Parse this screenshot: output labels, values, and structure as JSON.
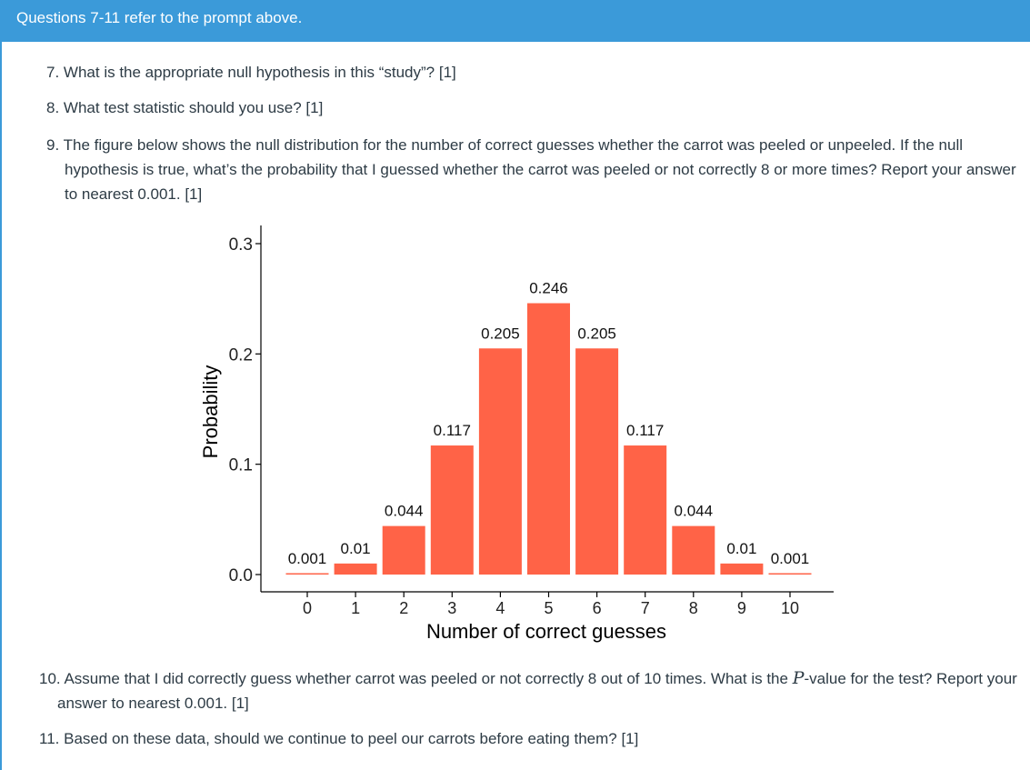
{
  "header": {
    "title": "Questions 7-11 refer to the prompt above."
  },
  "questions": {
    "q7": {
      "num": "7.",
      "text": "What is the appropriate null hypothesis in this “study”? [1]"
    },
    "q8": {
      "num": "8.",
      "text": "What test statistic should you use? [1]"
    },
    "q9": {
      "num": "9.",
      "text": "The figure below shows the null distribution for the number of correct guesses whether the carrot was peeled or unpeeled. If the null hypothesis is true, what’s the probability that I guessed whether the carrot was peeled or not correctly 8 or more times? Report your answer to nearest 0.001. [1]"
    },
    "q10": {
      "num": "10.",
      "text_before": "Assume that I did correctly guess whether carrot was peeled or not correctly 8 out of 10 times. What is the ",
      "var": "P",
      "text_after": "-value for the test? Report your answer to nearest 0.001. [1]"
    },
    "q11": {
      "num": "11.",
      "text": "Based on these data, should we continue to peel our carrots before eating them? [1]"
    }
  },
  "chart_data": {
    "type": "bar",
    "categories": [
      "0",
      "1",
      "2",
      "3",
      "4",
      "5",
      "6",
      "7",
      "8",
      "9",
      "10"
    ],
    "values": [
      0.001,
      0.01,
      0.044,
      0.117,
      0.205,
      0.246,
      0.205,
      0.117,
      0.044,
      0.01,
      0.001
    ],
    "labels": [
      "0.001",
      "0.01",
      "0.044",
      "0.117",
      "0.205",
      "0.246",
      "0.205",
      "0.117",
      "0.044",
      "0.01",
      "0.001"
    ],
    "xlabel": "Number of correct guesses",
    "ylabel": "Probability",
    "ylim": [
      0,
      0.3
    ],
    "yticks": [
      "0.0",
      "0.1",
      "0.2",
      "0.3"
    ],
    "bar_color": "#ff6347",
    "grid": false
  }
}
